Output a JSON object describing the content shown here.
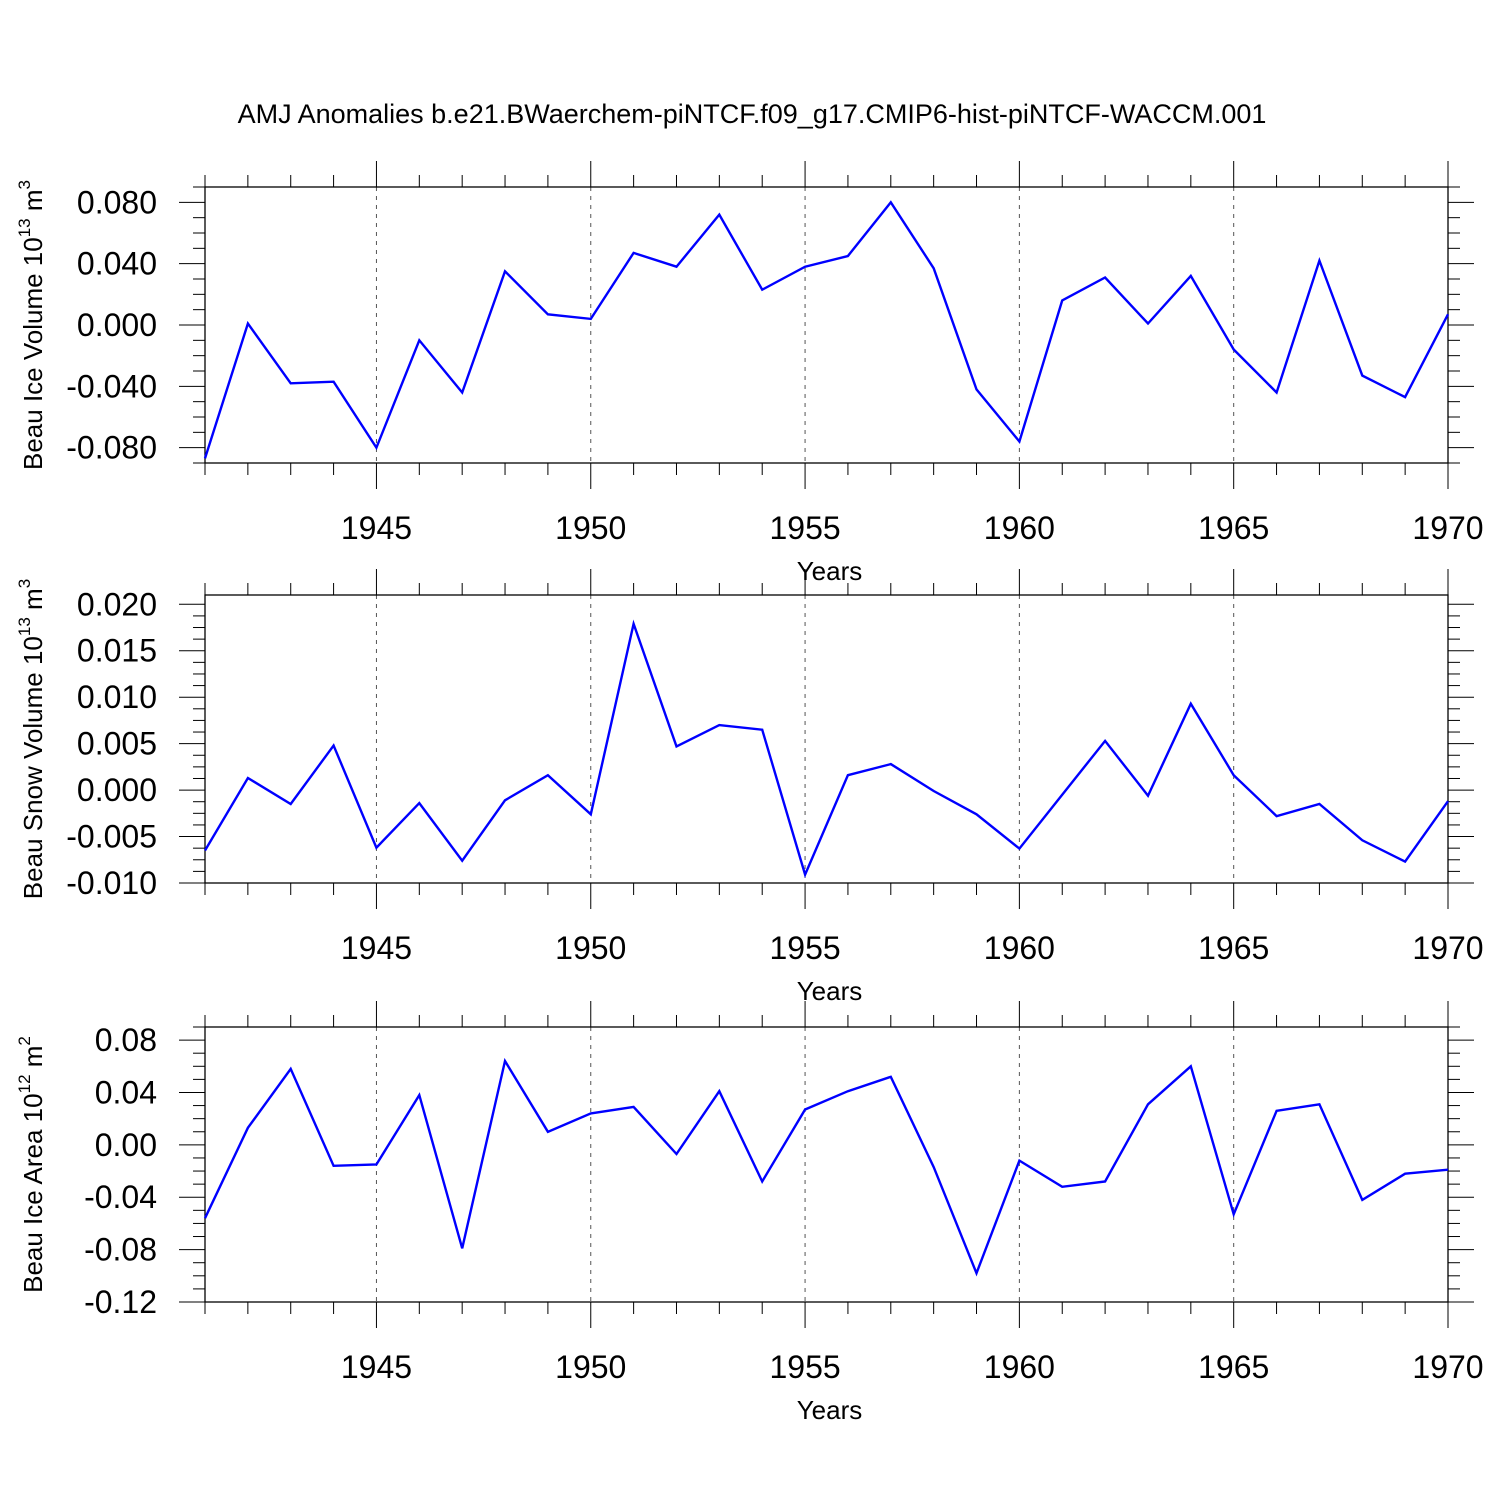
{
  "figure_title": "AMJ Anomalies b.e21.BWaerchem-piNTCF.f09_g17.CMIP6-hist-piNTCF-WACCM.001",
  "colors": {
    "line": "#0000ff",
    "frame": "#000000",
    "grid": "#555555"
  },
  "chart_data": [
    {
      "type": "line",
      "title": "",
      "ylabel": "Beau Ice Volume",
      "ylabel_power": "13",
      "ylabel_unit": "m",
      "ylabel_unit_power": "3",
      "xlabel": "Years",
      "xlim": [
        1941,
        1970
      ],
      "ylim": [
        -0.09,
        0.09
      ],
      "yticks": [
        -0.08,
        -0.04,
        0.0,
        0.04,
        0.08
      ],
      "ytick_labels": [
        "-0.080",
        "-0.040",
        "0.000",
        "0.040",
        "0.080"
      ],
      "xticks": [
        1945,
        1950,
        1955,
        1960,
        1965,
        1970
      ],
      "xtick_labels": [
        "1945",
        "1950",
        "1955",
        "1960",
        "1965",
        "1970"
      ],
      "grid": "vertical dashed at major x ticks",
      "series": [
        {
          "name": "Beau Ice Volume",
          "x": [
            1941,
            1942,
            1943,
            1944,
            1945,
            1946,
            1947,
            1948,
            1949,
            1950,
            1951,
            1952,
            1953,
            1954,
            1955,
            1956,
            1957,
            1958,
            1959,
            1960,
            1961,
            1962,
            1963,
            1964,
            1965,
            1966,
            1967,
            1968,
            1969,
            1970
          ],
          "values": [
            -0.087,
            0.001,
            -0.038,
            -0.037,
            -0.08,
            -0.01,
            -0.044,
            0.035,
            0.007,
            0.004,
            0.047,
            0.038,
            0.072,
            0.023,
            0.038,
            0.045,
            0.08,
            0.037,
            -0.042,
            -0.076,
            0.016,
            0.031,
            0.001,
            0.032,
            -0.016,
            -0.044,
            0.042,
            -0.033,
            -0.047,
            0.007
          ]
        }
      ]
    },
    {
      "type": "line",
      "title": "",
      "ylabel": "Beau Snow Volume",
      "ylabel_power": "13",
      "ylabel_unit": "m",
      "ylabel_unit_power": "3",
      "xlabel": "Years",
      "xlim": [
        1941,
        1970
      ],
      "ylim": [
        -0.01,
        0.021
      ],
      "yticks": [
        -0.01,
        -0.005,
        0.0,
        0.005,
        0.01,
        0.015,
        0.02
      ],
      "ytick_labels": [
        "-0.010",
        "-0.005",
        "0.000",
        "0.005",
        "0.010",
        "0.015",
        "0.020"
      ],
      "xticks": [
        1945,
        1950,
        1955,
        1960,
        1965,
        1970
      ],
      "xtick_labels": [
        "1945",
        "1950",
        "1955",
        "1960",
        "1965",
        "1970"
      ],
      "grid": "vertical dashed at major x ticks",
      "series": [
        {
          "name": "Beau Snow Volume",
          "x": [
            1941,
            1942,
            1943,
            1944,
            1945,
            1946,
            1947,
            1948,
            1949,
            1950,
            1951,
            1952,
            1953,
            1954,
            1955,
            1956,
            1957,
            1958,
            1959,
            1960,
            1961,
            1962,
            1963,
            1964,
            1965,
            1966,
            1967,
            1968,
            1969,
            1970
          ],
          "values": [
            -0.0065,
            0.0013,
            -0.0015,
            0.0048,
            -0.0062,
            -0.0014,
            -0.0076,
            -0.0011,
            0.0016,
            -0.0026,
            0.0179,
            0.0047,
            0.007,
            0.0065,
            -0.0091,
            0.0016,
            0.0028,
            -0.0001,
            -0.0026,
            -0.0063,
            -0.0005,
            0.0053,
            -0.0006,
            0.0093,
            0.0016,
            -0.0028,
            -0.0015,
            -0.0054,
            -0.0077,
            -0.0012
          ]
        }
      ]
    },
    {
      "type": "line",
      "title": "",
      "ylabel": "Beau Ice Area",
      "ylabel_power": "12",
      "ylabel_unit": "m",
      "ylabel_unit_power": "2",
      "xlabel": "Years",
      "xlim": [
        1941,
        1970
      ],
      "ylim": [
        -0.12,
        0.09
      ],
      "yticks": [
        -0.12,
        -0.08,
        -0.04,
        0.0,
        0.04,
        0.08
      ],
      "ytick_labels": [
        "-0.12",
        "-0.08",
        "-0.04",
        "0.00",
        "0.04",
        "0.08"
      ],
      "xticks": [
        1945,
        1950,
        1955,
        1960,
        1965,
        1970
      ],
      "xtick_labels": [
        "1945",
        "1950",
        "1955",
        "1960",
        "1965",
        "1970"
      ],
      "grid": "vertical dashed at major x ticks",
      "series": [
        {
          "name": "Beau Ice Area",
          "x": [
            1941,
            1942,
            1943,
            1944,
            1945,
            1946,
            1947,
            1948,
            1949,
            1950,
            1951,
            1952,
            1953,
            1954,
            1955,
            1956,
            1957,
            1958,
            1959,
            1960,
            1961,
            1962,
            1963,
            1964,
            1965,
            1966,
            1967,
            1968,
            1969,
            1970
          ],
          "values": [
            -0.056,
            0.013,
            0.058,
            -0.016,
            -0.015,
            0.038,
            -0.079,
            0.064,
            0.01,
            0.024,
            0.029,
            -0.007,
            0.041,
            -0.028,
            0.027,
            0.041,
            0.052,
            -0.017,
            -0.098,
            -0.012,
            -0.032,
            -0.028,
            0.031,
            0.06,
            -0.053,
            0.026,
            0.031,
            -0.042,
            -0.022,
            -0.019
          ]
        }
      ]
    }
  ]
}
